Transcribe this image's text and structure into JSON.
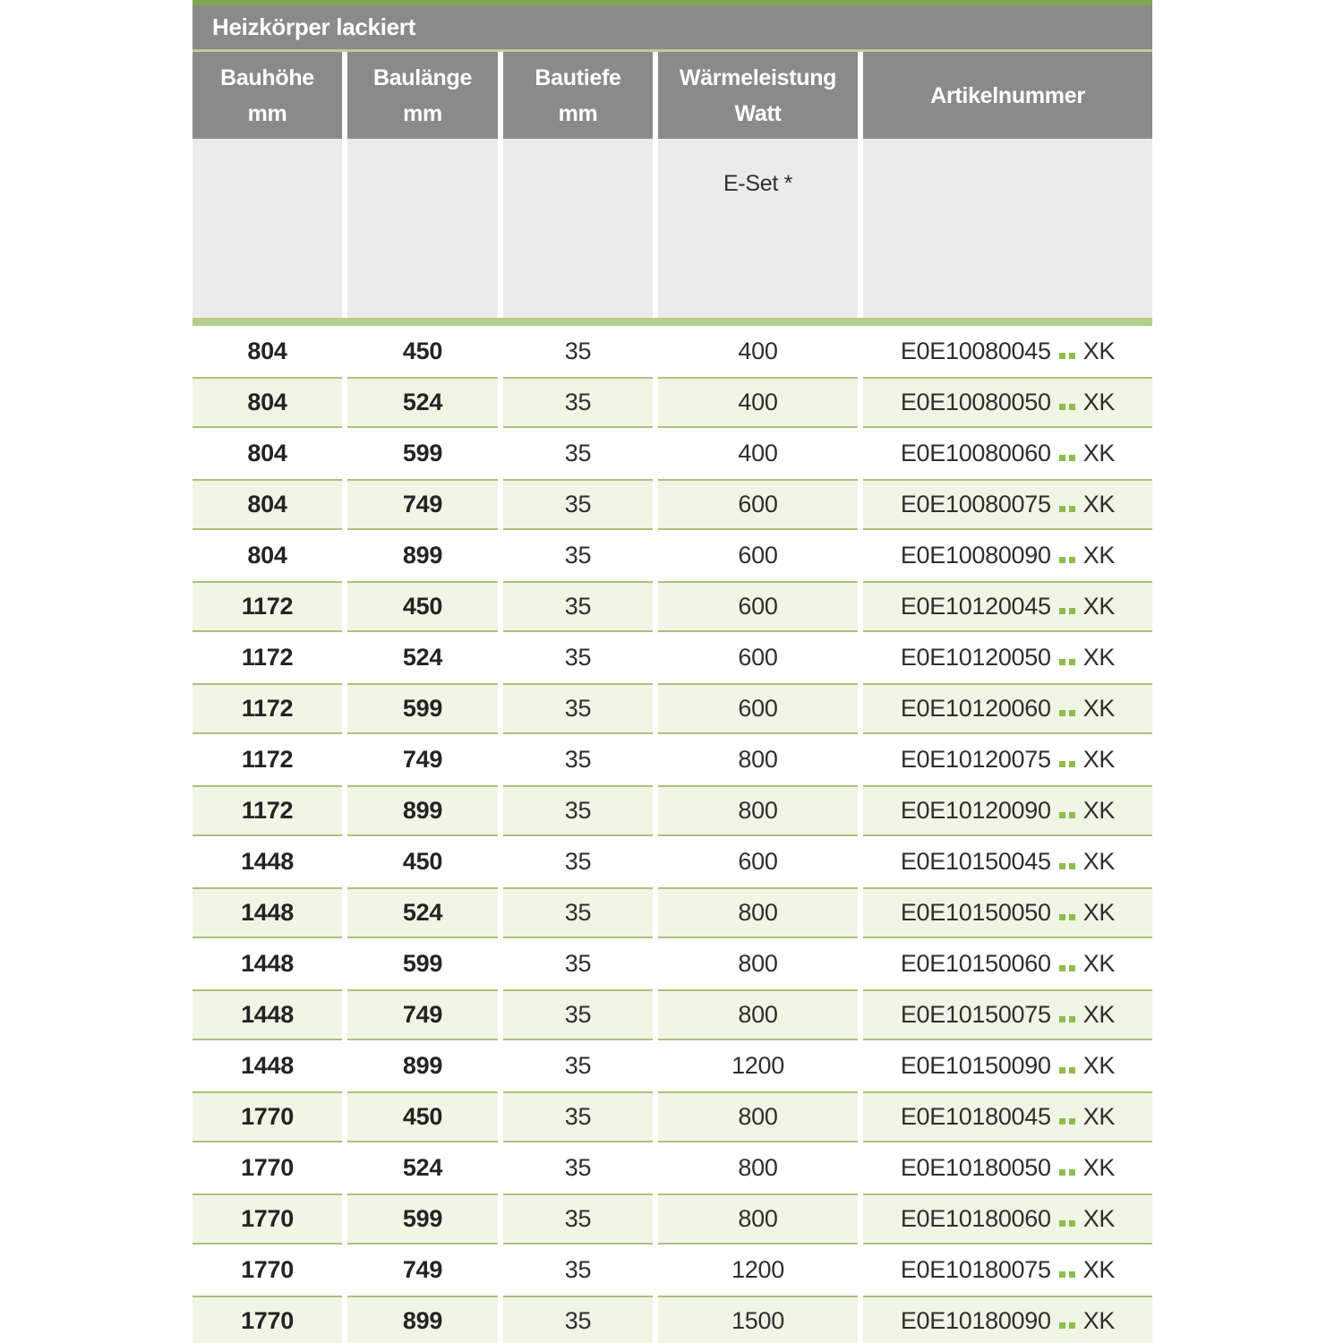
{
  "table": {
    "title": "Heizkörper lackiert",
    "columns": [
      {
        "line1": "Bauhöhe",
        "line2": "mm"
      },
      {
        "line1": "Baulänge",
        "line2": "mm"
      },
      {
        "line1": "Bautiefe",
        "line2": "mm"
      },
      {
        "line1": "Wärmeleistung",
        "line2": "Watt"
      },
      {
        "line1": "Artikelnummer",
        "line2": ""
      }
    ],
    "subheader": {
      "eset_label": "E-Set *"
    },
    "article_dots": "..",
    "rows": [
      {
        "bauhoehe": "804",
        "baulaenge": "450",
        "bautiefe": "35",
        "waermeleistung": "400",
        "artikel_code": "E0E10080045",
        "artikel_suffix": "XK"
      },
      {
        "bauhoehe": "804",
        "baulaenge": "524",
        "bautiefe": "35",
        "waermeleistung": "400",
        "artikel_code": "E0E10080050",
        "artikel_suffix": "XK"
      },
      {
        "bauhoehe": "804",
        "baulaenge": "599",
        "bautiefe": "35",
        "waermeleistung": "400",
        "artikel_code": "E0E10080060",
        "artikel_suffix": "XK"
      },
      {
        "bauhoehe": "804",
        "baulaenge": "749",
        "bautiefe": "35",
        "waermeleistung": "600",
        "artikel_code": "E0E10080075",
        "artikel_suffix": "XK"
      },
      {
        "bauhoehe": "804",
        "baulaenge": "899",
        "bautiefe": "35",
        "waermeleistung": "600",
        "artikel_code": "E0E10080090",
        "artikel_suffix": "XK"
      },
      {
        "bauhoehe": "1172",
        "baulaenge": "450",
        "bautiefe": "35",
        "waermeleistung": "600",
        "artikel_code": "E0E10120045",
        "artikel_suffix": "XK"
      },
      {
        "bauhoehe": "1172",
        "baulaenge": "524",
        "bautiefe": "35",
        "waermeleistung": "600",
        "artikel_code": "E0E10120050",
        "artikel_suffix": "XK"
      },
      {
        "bauhoehe": "1172",
        "baulaenge": "599",
        "bautiefe": "35",
        "waermeleistung": "600",
        "artikel_code": "E0E10120060",
        "artikel_suffix": "XK"
      },
      {
        "bauhoehe": "1172",
        "baulaenge": "749",
        "bautiefe": "35",
        "waermeleistung": "800",
        "artikel_code": "E0E10120075",
        "artikel_suffix": "XK"
      },
      {
        "bauhoehe": "1172",
        "baulaenge": "899",
        "bautiefe": "35",
        "waermeleistung": "800",
        "artikel_code": "E0E10120090",
        "artikel_suffix": "XK"
      },
      {
        "bauhoehe": "1448",
        "baulaenge": "450",
        "bautiefe": "35",
        "waermeleistung": "600",
        "artikel_code": "E0E10150045",
        "artikel_suffix": "XK"
      },
      {
        "bauhoehe": "1448",
        "baulaenge": "524",
        "bautiefe": "35",
        "waermeleistung": "800",
        "artikel_code": "E0E10150050",
        "artikel_suffix": "XK"
      },
      {
        "bauhoehe": "1448",
        "baulaenge": "599",
        "bautiefe": "35",
        "waermeleistung": "800",
        "artikel_code": "E0E10150060",
        "artikel_suffix": "XK"
      },
      {
        "bauhoehe": "1448",
        "baulaenge": "749",
        "bautiefe": "35",
        "waermeleistung": "800",
        "artikel_code": "E0E10150075",
        "artikel_suffix": "XK"
      },
      {
        "bauhoehe": "1448",
        "baulaenge": "899",
        "bautiefe": "35",
        "waermeleistung": "1200",
        "artikel_code": "E0E10150090",
        "artikel_suffix": "XK"
      },
      {
        "bauhoehe": "1770",
        "baulaenge": "450",
        "bautiefe": "35",
        "waermeleistung": "800",
        "artikel_code": "E0E10180045",
        "artikel_suffix": "XK"
      },
      {
        "bauhoehe": "1770",
        "baulaenge": "524",
        "bautiefe": "35",
        "waermeleistung": "800",
        "artikel_code": "E0E10180050",
        "artikel_suffix": "XK"
      },
      {
        "bauhoehe": "1770",
        "baulaenge": "599",
        "bautiefe": "35",
        "waermeleistung": "800",
        "artikel_code": "E0E10180060",
        "artikel_suffix": "XK"
      },
      {
        "bauhoehe": "1770",
        "baulaenge": "749",
        "bautiefe": "35",
        "waermeleistung": "1200",
        "artikel_code": "E0E10180075",
        "artikel_suffix": "XK"
      },
      {
        "bauhoehe": "1770",
        "baulaenge": "899",
        "bautiefe": "35",
        "waermeleistung": "1500",
        "artikel_code": "E0E10180090",
        "artikel_suffix": "XK"
      }
    ],
    "colors": {
      "accent_green": "#8cbe4d",
      "top_bar_green": "#80a851",
      "title_sep_green": "#b9d096",
      "band_green": "#b3cf87",
      "row_green_bg": "#f1f5e6",
      "row_green_border": "#a9c37c",
      "header_gray": "#8a8a89",
      "subheader_gray": "#ebebeb"
    }
  }
}
